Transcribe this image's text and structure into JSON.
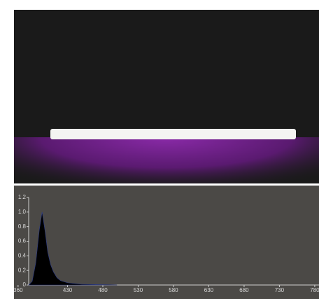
{
  "chart_data": {
    "type": "area",
    "x": [
      375,
      380,
      385,
      390,
      394,
      398,
      402,
      406,
      410,
      415,
      420,
      430,
      450,
      470,
      500
    ],
    "values": [
      0,
      0.05,
      0.3,
      0.75,
      1.0,
      0.75,
      0.45,
      0.28,
      0.18,
      0.1,
      0.06,
      0.03,
      0.01,
      0.005,
      0
    ],
    "color": "#000000",
    "xlim": [
      375,
      790
    ],
    "xticks": [
      360,
      430,
      480,
      530,
      580,
      630,
      680,
      730,
      780
    ],
    "ylim": [
      0,
      1.2
    ],
    "yticks": [
      0,
      0.2,
      0.4,
      0.6,
      0.8,
      {
        "value": 1,
        "label": "1.0"
      },
      1.2
    ]
  }
}
